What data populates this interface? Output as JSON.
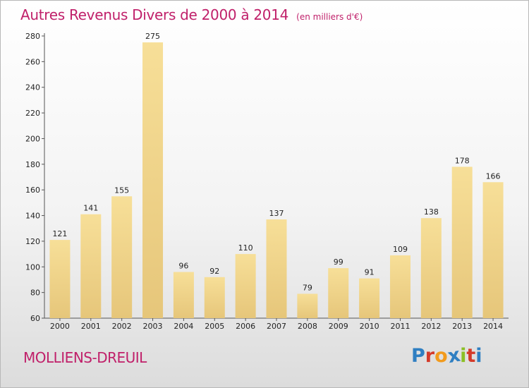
{
  "chart_data": {
    "type": "bar",
    "title": "Autres Revenus Divers de 2000 à 2014",
    "subtitle": "(en milliers d'€)",
    "categories": [
      "2000",
      "2001",
      "2002",
      "2003",
      "2004",
      "2005",
      "2006",
      "2007",
      "2008",
      "2009",
      "2010",
      "2011",
      "2012",
      "2013",
      "2014"
    ],
    "values": [
      121,
      141,
      155,
      275,
      96,
      92,
      110,
      137,
      79,
      99,
      91,
      109,
      138,
      178,
      166
    ],
    "ylim": [
      60,
      280
    ],
    "yticks": [
      60,
      80,
      100,
      120,
      140,
      160,
      180,
      200,
      220,
      240,
      260,
      280
    ],
    "grid": false,
    "bar_color": "#e6c67a",
    "xlabel": "",
    "ylabel": ""
  },
  "commune": "MOLLIENS-DREUIL",
  "logo": {
    "letters": [
      "P",
      "r",
      "o",
      "x",
      "i",
      "t",
      "i"
    ],
    "colors": [
      "#2f7fc2",
      "#d43a2a",
      "#f29b1d",
      "#2f7fc2",
      "#8cbf26",
      "#d43a2a",
      "#2f7fc2"
    ]
  },
  "colors": {
    "title": "#c0206a",
    "bar": "#e6c67a",
    "axis": "#555555"
  }
}
